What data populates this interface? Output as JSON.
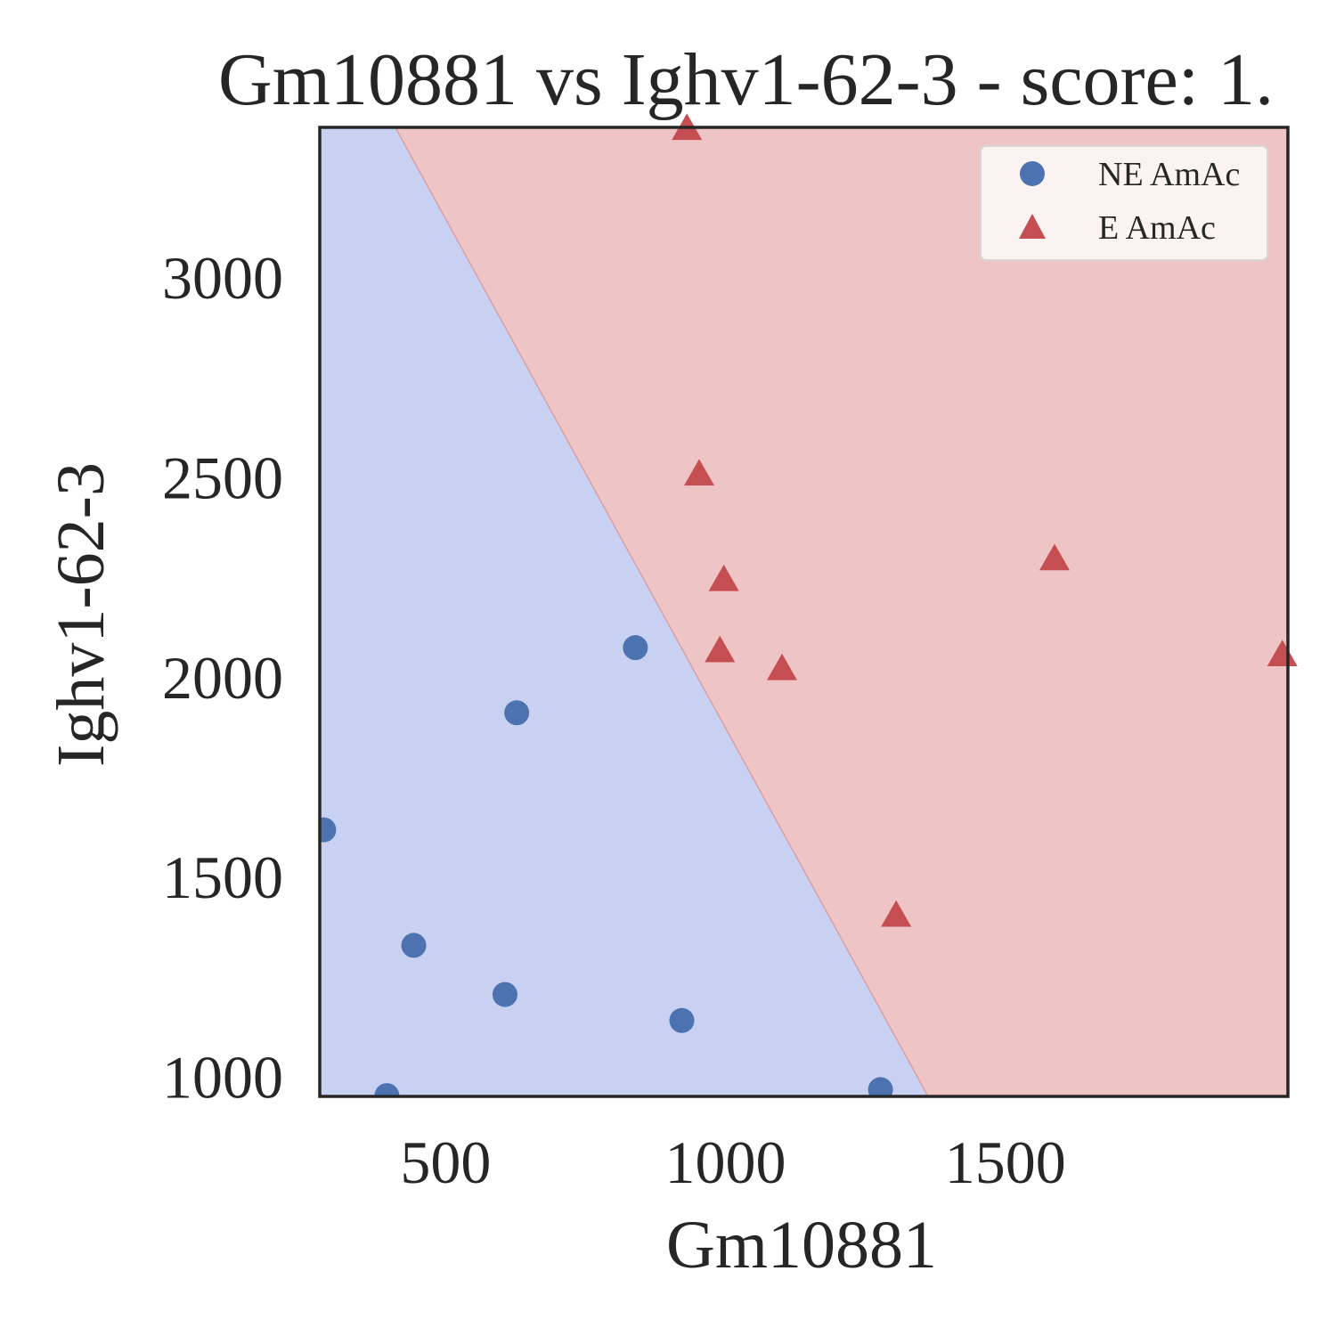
{
  "chart_data": {
    "type": "scatter",
    "title": "Gm10881 vs Ighv1-62-3 - score: 1.",
    "xlabel": "Gm10881",
    "ylabel": "Ighv1-62-3",
    "xlim": [
      275,
      2005
    ],
    "ylim": [
      950,
      3375
    ],
    "x_ticks": [
      500,
      1000,
      1500
    ],
    "y_ticks": [
      1000,
      1500,
      2000,
      2500,
      3000
    ],
    "grid": false,
    "legend_position": "top-right",
    "decision_boundary": {
      "line": [
        [
          410,
          3375
        ],
        [
          1362,
          950
        ]
      ],
      "region_colors": {
        "NE AmAc": "#c8d1f1",
        "E AmAc": "#eec4c4"
      }
    },
    "series": [
      {
        "name": "NE AmAc",
        "marker": "circle",
        "color": "#4c72b0",
        "points": [
          [
            282,
            1617
          ],
          [
            395,
            952
          ],
          [
            443,
            1328
          ],
          [
            606,
            1205
          ],
          [
            627,
            1910
          ],
          [
            839,
            2073
          ],
          [
            922,
            1140
          ],
          [
            1277,
            967
          ]
        ]
      },
      {
        "name": "E AmAc",
        "marker": "triangle",
        "color": "#c44e52",
        "points": [
          [
            931,
            3372
          ],
          [
            953,
            2507
          ],
          [
            997,
            2243
          ],
          [
            990,
            2065
          ],
          [
            1101,
            2020
          ],
          [
            1305,
            1403
          ],
          [
            1588,
            2295
          ],
          [
            1995,
            2055
          ]
        ]
      }
    ]
  }
}
